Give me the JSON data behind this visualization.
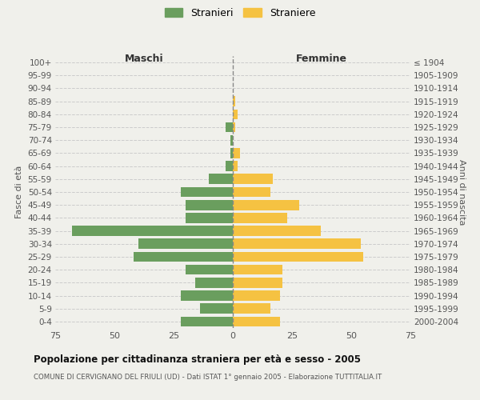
{
  "age_groups": [
    "0-4",
    "5-9",
    "10-14",
    "15-19",
    "20-24",
    "25-29",
    "30-34",
    "35-39",
    "40-44",
    "45-49",
    "50-54",
    "55-59",
    "60-64",
    "65-69",
    "70-74",
    "75-79",
    "80-84",
    "85-89",
    "90-94",
    "95-99",
    "100+"
  ],
  "birth_years": [
    "2000-2004",
    "1995-1999",
    "1990-1994",
    "1985-1989",
    "1980-1984",
    "1975-1979",
    "1970-1974",
    "1965-1969",
    "1960-1964",
    "1955-1959",
    "1950-1954",
    "1945-1949",
    "1940-1944",
    "1935-1939",
    "1930-1934",
    "1925-1929",
    "1920-1924",
    "1915-1919",
    "1910-1914",
    "1905-1909",
    "≤ 1904"
  ],
  "males": [
    22,
    14,
    22,
    16,
    20,
    42,
    40,
    68,
    20,
    20,
    22,
    10,
    3,
    1,
    1,
    3,
    0,
    0,
    0,
    0,
    0
  ],
  "females": [
    20,
    16,
    20,
    21,
    21,
    55,
    54,
    37,
    23,
    28,
    16,
    17,
    2,
    3,
    0,
    1,
    2,
    1,
    0,
    0,
    0
  ],
  "male_color": "#6a9e5e",
  "female_color": "#f5c242",
  "title": "Popolazione per cittadinanza straniera per età e sesso - 2005",
  "subtitle": "COMUNE DI CERVIGNANO DEL FRIULI (UD) - Dati ISTAT 1° gennaio 2005 - Elaborazione TUTTITALIA.IT",
  "ylabel_left": "Fasce di età",
  "ylabel_right": "Anni di nascita",
  "xlabel_left": "Maschi",
  "xlabel_right": "Femmine",
  "xlim": 75,
  "legend_labels": [
    "Stranieri",
    "Straniere"
  ],
  "bg_color": "#f0f0eb",
  "grid_color": "#cccccc",
  "text_color": "#555555"
}
